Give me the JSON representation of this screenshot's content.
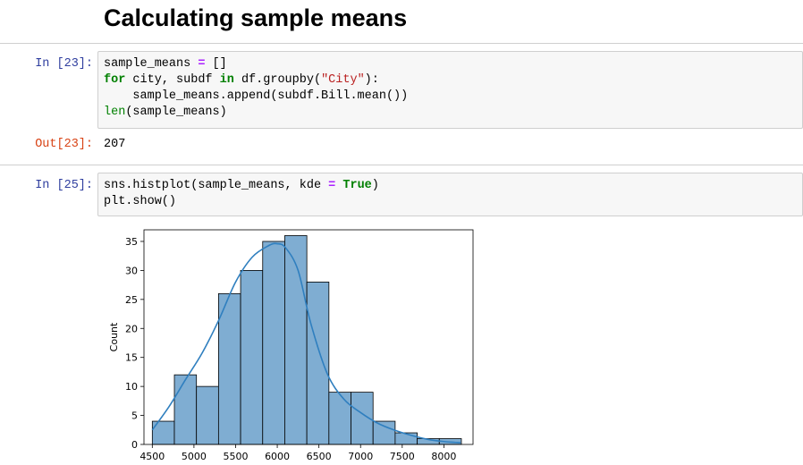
{
  "notebook": {
    "heading": "Calculating sample means",
    "cells": [
      {
        "prompt": "In [23]:",
        "code_lines": [
          [
            {
              "t": "sample_means "
            },
            {
              "t": "=",
              "c": "op"
            },
            {
              "t": " []"
            }
          ],
          [
            {
              "t": "for",
              "c": "kw"
            },
            {
              "t": " city, subdf "
            },
            {
              "t": "in",
              "c": "kw"
            },
            {
              "t": " df.groupby("
            },
            {
              "t": "\"City\"",
              "c": "str"
            },
            {
              "t": "):"
            }
          ],
          [
            {
              "t": "    sample_means.append(subdf.Bill.mean())"
            }
          ],
          [
            {
              "t": "len",
              "c": "bi"
            },
            {
              "t": "(sample_means)"
            }
          ]
        ],
        "output_prompt": "Out[23]:",
        "output_text": "207"
      },
      {
        "prompt": "In [25]:",
        "code_lines": [
          [
            {
              "t": "sns.histplot(sample_means, kde "
            },
            {
              "t": "=",
              "c": "op"
            },
            {
              "t": " "
            },
            {
              "t": "True",
              "c": "kw"
            },
            {
              "t": ")"
            }
          ],
          [
            {
              "t": "plt.show()"
            }
          ]
        ]
      }
    ]
  },
  "chart_data": {
    "type": "bar",
    "subtype": "histogram-with-kde",
    "title": "",
    "xlabel": "",
    "ylabel": "Count",
    "xlim": [
      4400,
      8350
    ],
    "ylim": [
      0,
      37
    ],
    "bar_color": "#7fadd2",
    "edge_color": "#000000",
    "kde_color": "#2f7fbf",
    "bins": [
      {
        "start": 4500,
        "end": 4765,
        "count": 4
      },
      {
        "start": 4765,
        "end": 5030,
        "count": 12
      },
      {
        "start": 5030,
        "end": 5295,
        "count": 10
      },
      {
        "start": 5295,
        "end": 5560,
        "count": 26
      },
      {
        "start": 5560,
        "end": 5825,
        "count": 30
      },
      {
        "start": 5825,
        "end": 6090,
        "count": 35
      },
      {
        "start": 6090,
        "end": 6355,
        "count": 36
      },
      {
        "start": 6355,
        "end": 6620,
        "count": 28
      },
      {
        "start": 6620,
        "end": 6885,
        "count": 9
      },
      {
        "start": 6885,
        "end": 7150,
        "count": 9
      },
      {
        "start": 7150,
        "end": 7415,
        "count": 4
      },
      {
        "start": 7415,
        "end": 7680,
        "count": 2
      },
      {
        "start": 7680,
        "end": 7945,
        "count": 1
      },
      {
        "start": 7945,
        "end": 8210,
        "count": 1
      }
    ],
    "kde": {
      "x": [
        4500,
        4700,
        4900,
        5100,
        5300,
        5500,
        5700,
        5900,
        6000,
        6100,
        6250,
        6400,
        6600,
        6800,
        7000,
        7200,
        7400,
        7600,
        7800,
        8000,
        8200
      ],
      "y": [
        2.5,
        6.5,
        11.2,
        15.8,
        21.5,
        28,
        32.3,
        34.3,
        34.6,
        33.9,
        30,
        21,
        12.2,
        7.8,
        5.5,
        3.7,
        2.5,
        1.6,
        0.9,
        0.5,
        0.3
      ]
    },
    "x_ticks": [
      4500,
      5000,
      5500,
      6000,
      6500,
      7000,
      7500,
      8000
    ],
    "y_ticks": [
      0,
      5,
      10,
      15,
      20,
      25,
      30,
      35
    ]
  }
}
